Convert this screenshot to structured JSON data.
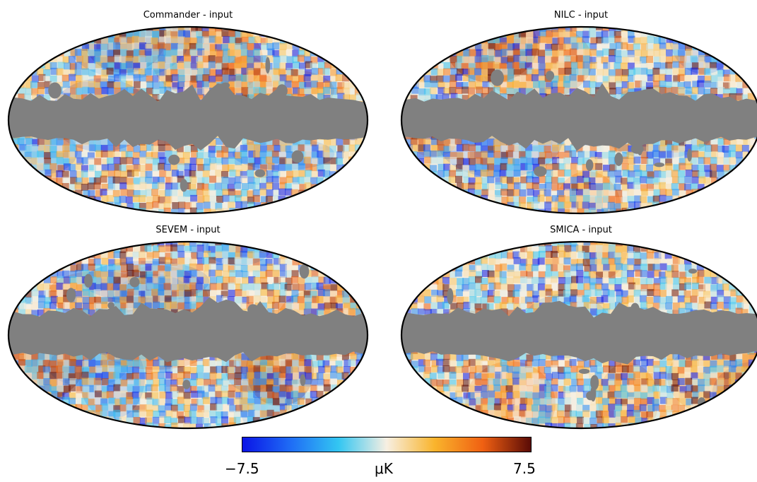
{
  "panels": [
    {
      "title": "Commander - input"
    },
    {
      "title": "NILC - input"
    },
    {
      "title": "SEVEM - input"
    },
    {
      "title": "SMICA - input"
    }
  ],
  "colorbar": {
    "min_label": "−7.5",
    "max_label": "7.5",
    "unit_label": "μK",
    "colors": [
      "#0a14e6",
      "#1f6cf5",
      "#33c6f2",
      "#f7efe2",
      "#f9b42c",
      "#f06012",
      "#5a0b06"
    ]
  },
  "mask_color": "#808080"
}
